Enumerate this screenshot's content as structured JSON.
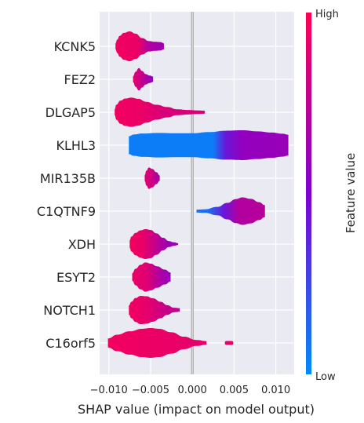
{
  "chart_data": {
    "type": "violin",
    "xlabel": "SHAP value (impact on model output)",
    "ylabel": "",
    "xlim": [
      -0.0111,
      0.0122
    ],
    "x_ticks": [
      -0.01,
      -0.005,
      0.0,
      0.005,
      0.01
    ],
    "x_tick_labels": [
      "−0.010",
      "−0.005",
      "0.000",
      "0.005",
      "0.010"
    ],
    "grid": true,
    "colorbar": {
      "title": "Feature value",
      "high_label": "High",
      "low_label": "Low",
      "high_color": "#ff0052",
      "low_color": "#008bfb"
    },
    "features": [
      {
        "name": "KCNK5",
        "shape": [
          [
            -0.0092,
            0.2
          ],
          [
            -0.009,
            0.45
          ],
          [
            -0.0087,
            0.7
          ],
          [
            -0.0082,
            0.9
          ],
          [
            -0.0075,
            1.0
          ],
          [
            -0.0068,
            0.85
          ],
          [
            -0.006,
            0.55
          ],
          [
            -0.0052,
            0.35
          ],
          [
            -0.0045,
            0.3
          ],
          [
            -0.0038,
            0.28
          ],
          [
            -0.0034,
            0.2
          ]
        ],
        "color": [
          [
            -0.0092,
            0.95
          ],
          [
            -0.0065,
            0.92
          ],
          [
            -0.0052,
            0.7
          ],
          [
            -0.0034,
            0.62
          ]
        ]
      },
      {
        "name": "FEZ2",
        "shape": [
          [
            -0.0071,
            0.2
          ],
          [
            -0.0068,
            0.5
          ],
          [
            -0.0064,
            0.75
          ],
          [
            -0.006,
            0.55
          ],
          [
            -0.0056,
            0.35
          ],
          [
            -0.0051,
            0.25
          ],
          [
            -0.0047,
            0.18
          ]
        ],
        "color": [
          [
            -0.0071,
            0.9
          ],
          [
            -0.0062,
            0.8
          ],
          [
            -0.0047,
            0.55
          ]
        ]
      },
      {
        "name": "DLGAP5",
        "shape": [
          [
            -0.0093,
            0.2
          ],
          [
            -0.0091,
            0.5
          ],
          [
            -0.0086,
            0.78
          ],
          [
            -0.008,
            0.92
          ],
          [
            -0.0073,
            0.98
          ],
          [
            -0.0065,
            0.9
          ],
          [
            -0.0055,
            0.7
          ],
          [
            -0.0043,
            0.5
          ],
          [
            -0.003,
            0.35
          ],
          [
            -0.0018,
            0.2
          ],
          [
            -0.0005,
            0.15
          ],
          [
            0.0006,
            0.12
          ],
          [
            0.0015,
            0.1
          ]
        ],
        "color": [
          [
            -0.0093,
            0.95
          ],
          [
            -0.006,
            0.92
          ],
          [
            -0.0035,
            0.85
          ],
          [
            0.0015,
            0.85
          ]
        ]
      },
      {
        "name": "KLHL3",
        "shape": [
          [
            -0.0076,
            0.6
          ],
          [
            -0.007,
            0.72
          ],
          [
            -0.006,
            0.78
          ],
          [
            -0.004,
            0.82
          ],
          [
            -0.002,
            0.8
          ],
          [
            0.0,
            0.8
          ],
          [
            0.002,
            0.88
          ],
          [
            0.004,
            0.97
          ],
          [
            0.006,
            1.0
          ],
          [
            0.0078,
            0.93
          ],
          [
            0.0095,
            0.85
          ],
          [
            0.0108,
            0.77
          ],
          [
            0.0115,
            0.7
          ]
        ],
        "color": [
          [
            -0.0076,
            0.05
          ],
          [
            0.0025,
            0.05
          ],
          [
            0.004,
            0.42
          ],
          [
            0.006,
            0.58
          ],
          [
            0.0115,
            0.6
          ]
        ]
      },
      {
        "name": "MIR135B",
        "shape": [
          [
            -0.0057,
            0.2
          ],
          [
            -0.0055,
            0.5
          ],
          [
            -0.0052,
            0.72
          ],
          [
            -0.0048,
            0.62
          ],
          [
            -0.0043,
            0.4
          ],
          [
            -0.0039,
            0.18
          ]
        ],
        "color": [
          [
            -0.0057,
            0.88
          ],
          [
            -0.0048,
            0.82
          ],
          [
            -0.0039,
            0.6
          ]
        ]
      },
      {
        "name": "C1QTNF9",
        "shape": [
          [
            0.0005,
            0.1
          ],
          [
            0.0015,
            0.12
          ],
          [
            0.003,
            0.28
          ],
          [
            0.0042,
            0.55
          ],
          [
            0.0052,
            0.8
          ],
          [
            0.006,
            0.92
          ],
          [
            0.007,
            0.82
          ],
          [
            0.008,
            0.6
          ],
          [
            0.0087,
            0.4
          ]
        ],
        "color": [
          [
            0.0005,
            0.08
          ],
          [
            0.002,
            0.12
          ],
          [
            0.0038,
            0.42
          ],
          [
            0.0055,
            0.7
          ],
          [
            0.0087,
            0.72
          ]
        ]
      },
      {
        "name": "XDH",
        "shape": [
          [
            -0.0075,
            0.25
          ],
          [
            -0.0073,
            0.5
          ],
          [
            -0.0068,
            0.75
          ],
          [
            -0.0062,
            0.92
          ],
          [
            -0.0056,
            1.0
          ],
          [
            -0.005,
            0.95
          ],
          [
            -0.0043,
            0.72
          ],
          [
            -0.0035,
            0.42
          ],
          [
            -0.0028,
            0.2
          ],
          [
            -0.0022,
            0.12
          ],
          [
            -0.0017,
            0.06
          ]
        ],
        "color": [
          [
            -0.0075,
            0.95
          ],
          [
            -0.006,
            0.92
          ],
          [
            -0.0045,
            0.78
          ],
          [
            -0.003,
            0.62
          ],
          [
            -0.0017,
            0.6
          ]
        ]
      },
      {
        "name": "ESYT2",
        "shape": [
          [
            -0.0072,
            0.25
          ],
          [
            -0.0068,
            0.55
          ],
          [
            -0.0062,
            0.82
          ],
          [
            -0.0056,
            0.98
          ],
          [
            -0.005,
            0.9
          ],
          [
            -0.0042,
            0.72
          ],
          [
            -0.0033,
            0.5
          ],
          [
            -0.0026,
            0.3
          ]
        ],
        "color": [
          [
            -0.0072,
            0.92
          ],
          [
            -0.0055,
            0.88
          ],
          [
            -0.004,
            0.7
          ],
          [
            -0.0026,
            0.58
          ]
        ]
      },
      {
        "name": "NOTCH1",
        "shape": [
          [
            -0.0076,
            0.3
          ],
          [
            -0.0073,
            0.55
          ],
          [
            -0.0068,
            0.8
          ],
          [
            -0.0062,
            0.95
          ],
          [
            -0.0055,
            0.92
          ],
          [
            -0.0047,
            0.78
          ],
          [
            -0.0038,
            0.55
          ],
          [
            -0.003,
            0.32
          ],
          [
            -0.0022,
            0.15
          ],
          [
            -0.0015,
            0.12
          ]
        ],
        "color": [
          [
            -0.0076,
            0.95
          ],
          [
            -0.0055,
            0.9
          ],
          [
            -0.0035,
            0.8
          ],
          [
            -0.0015,
            0.75
          ]
        ]
      },
      {
        "name": "C16orf5",
        "shape": [
          [
            -0.0101,
            0.3
          ],
          [
            -0.009,
            0.55
          ],
          [
            -0.0075,
            0.78
          ],
          [
            -0.006,
            0.95
          ],
          [
            -0.005,
            1.0
          ],
          [
            -0.004,
            0.95
          ],
          [
            -0.0025,
            0.72
          ],
          [
            -0.001,
            0.42
          ],
          [
            0.0005,
            0.2
          ],
          [
            0.0017,
            0.12
          ]
        ],
        "color": [
          [
            -0.0101,
            0.95
          ],
          [
            -0.003,
            0.92
          ],
          [
            0.0017,
            0.9
          ]
        ],
        "extra": [
          0.0039,
          0.0049
        ]
      }
    ]
  }
}
